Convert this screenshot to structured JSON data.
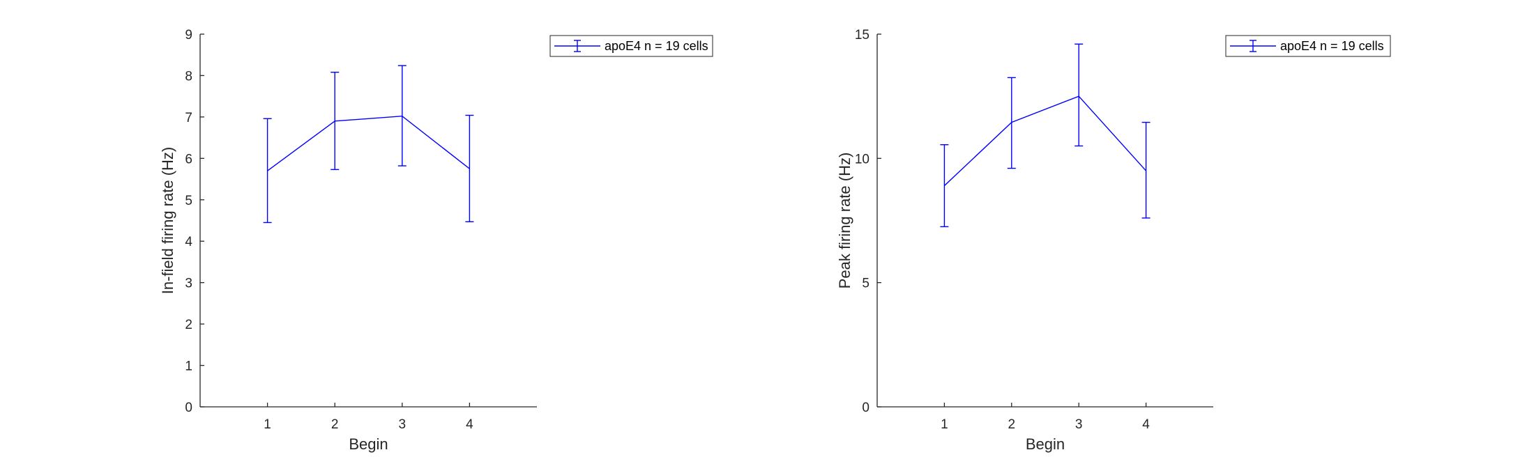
{
  "colors": {
    "series": "#0000ff",
    "axis": "#262626",
    "background": "#ffffff"
  },
  "chart_data": [
    {
      "type": "line",
      "error_bars": true,
      "xlabel": "Begin",
      "ylabel": "In-field firing rate (Hz)",
      "xlim": [
        0,
        5
      ],
      "ylim": [
        0,
        9
      ],
      "xticks": [
        1,
        2,
        3,
        4
      ],
      "yticks": [
        0,
        1,
        2,
        3,
        4,
        5,
        6,
        7,
        8,
        9
      ],
      "legend_location": "northeast-outside",
      "grid": false,
      "series": [
        {
          "name": "apoE4 n = 19 cells",
          "x": [
            1,
            2,
            3,
            4
          ],
          "y": [
            5.7,
            6.9,
            7.02,
            5.75
          ],
          "err_low": [
            4.45,
            5.73,
            5.82,
            4.47
          ],
          "err_high": [
            6.96,
            8.08,
            8.24,
            7.04
          ]
        }
      ]
    },
    {
      "type": "line",
      "error_bars": true,
      "xlabel": "Begin",
      "ylabel": "Peak firing rate (Hz)",
      "xlim": [
        0,
        5
      ],
      "ylim": [
        0,
        15
      ],
      "xticks": [
        1,
        2,
        3,
        4
      ],
      "yticks": [
        0,
        5,
        10,
        15
      ],
      "legend_location": "northeast-outside",
      "grid": false,
      "series": [
        {
          "name": "apoE4 n = 19 cells",
          "x": [
            1,
            2,
            3,
            4
          ],
          "y": [
            8.9,
            11.45,
            12.5,
            9.5
          ],
          "err_low": [
            7.25,
            9.6,
            10.5,
            7.6
          ],
          "err_high": [
            10.55,
            13.25,
            14.6,
            11.45
          ]
        }
      ]
    }
  ]
}
